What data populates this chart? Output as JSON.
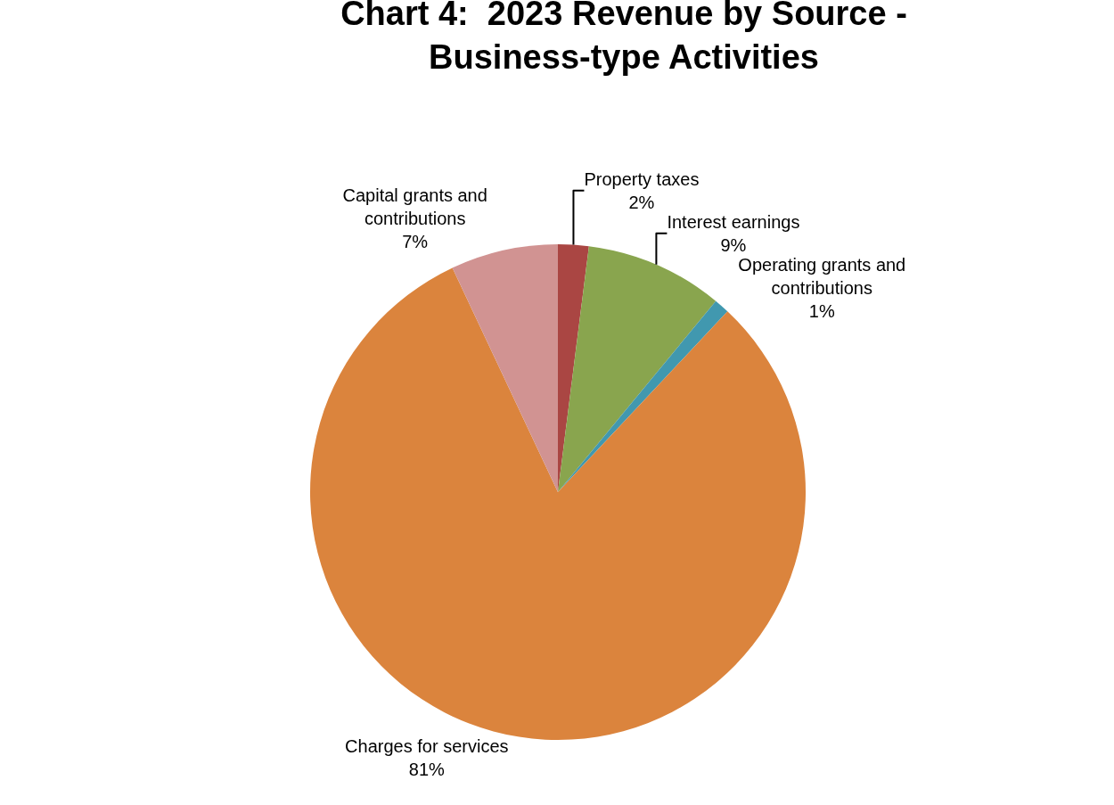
{
  "chart_data": {
    "type": "pie",
    "title": "Chart 4:  2023 Revenue by Source - Business-type Activities",
    "categories": [
      "Property taxes",
      "Interest earnings",
      "Operating grants and contributions",
      "Charges for services",
      "Capital grants and contributions"
    ],
    "values": [
      2,
      9,
      1,
      81,
      7
    ],
    "value_labels": [
      "2%",
      "9%",
      "1%",
      "81%",
      "7%"
    ],
    "colors": [
      "#aa4643",
      "#89a54e",
      "#4198af",
      "#db843d",
      "#d19392"
    ],
    "legend": false
  }
}
